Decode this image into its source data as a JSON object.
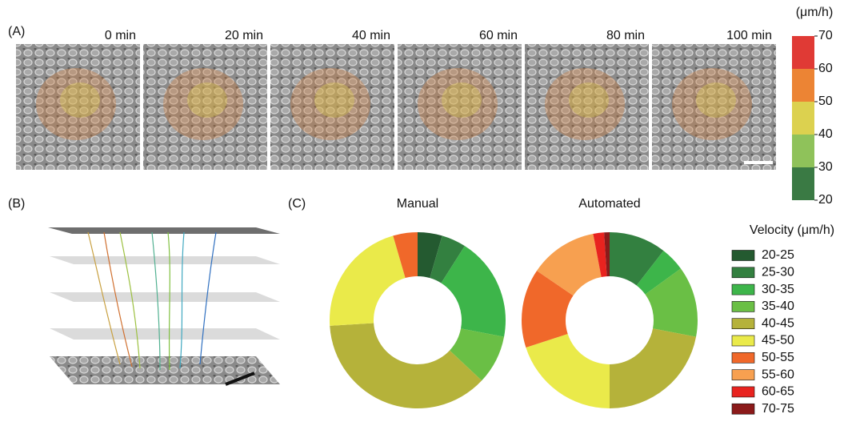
{
  "panel_labels": [
    "(A)",
    "(B)",
    "(C)"
  ],
  "time_labels": [
    "0 min",
    "20 min",
    "40 min",
    "60 min",
    "80 min",
    "100 min"
  ],
  "colorbar": {
    "unit": "(μm/h)",
    "ticks": [
      20,
      30,
      40,
      50,
      60,
      70
    ],
    "colors": [
      "#3a7a44",
      "#8fc25a",
      "#dcd14f",
      "#ec8434",
      "#e03a35"
    ]
  },
  "legend_title": "Velocity (μm/h)",
  "categories": [
    "20-25",
    "25-30",
    "30-35",
    "35-40",
    "40-45",
    "45-50",
    "50-55",
    "55-60",
    "60-65",
    "70-75"
  ],
  "colors": [
    "#245a30",
    "#338040",
    "#3db54a",
    "#6abf45",
    "#b5b23a",
    "#eaea4a",
    "#f0682a",
    "#f7a050",
    "#e8231f",
    "#8b1a1a"
  ],
  "chart_data": [
    {
      "type": "donut",
      "title": "Manual",
      "values": [
        4.5,
        4.5,
        19,
        9,
        37,
        21.5,
        4.5,
        0,
        0,
        0
      ]
    },
    {
      "type": "donut",
      "title": "Automated",
      "values": [
        0,
        10.5,
        4.5,
        13,
        22,
        20,
        14.5,
        12.5,
        2,
        1
      ]
    }
  ]
}
